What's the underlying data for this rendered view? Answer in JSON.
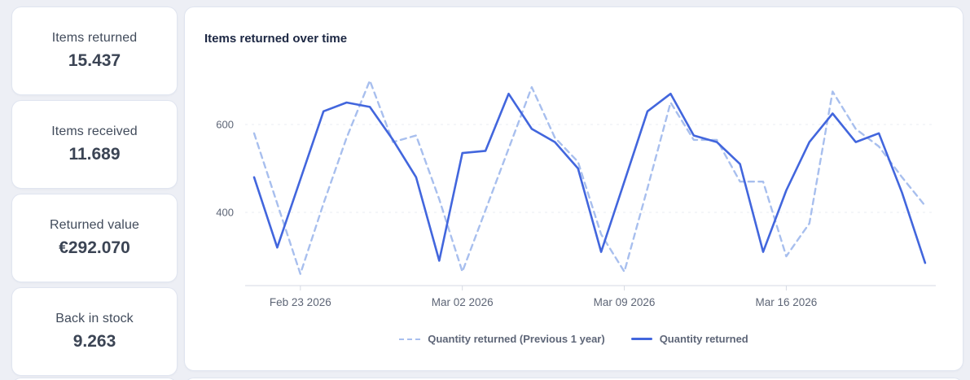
{
  "stats": {
    "cards": [
      {
        "label": "Items returned",
        "value": "15.437"
      },
      {
        "label": "Items received",
        "value": "11.689"
      },
      {
        "label": "Returned value",
        "value": "€292.070"
      },
      {
        "label": "Back in stock",
        "value": "9.263"
      }
    ]
  },
  "chart": {
    "title": "Items returned over time"
  },
  "chart_data": {
    "type": "line",
    "title": "Items returned over time",
    "x": [
      "Feb 21 2026",
      "Feb 22 2026",
      "Feb 23 2026",
      "Feb 24 2026",
      "Feb 25 2026",
      "Feb 26 2026",
      "Feb 27 2026",
      "Feb 28 2026",
      "Mar 01 2026",
      "Mar 02 2026",
      "Mar 03 2026",
      "Mar 04 2026",
      "Mar 05 2026",
      "Mar 06 2026",
      "Mar 07 2026",
      "Mar 08 2026",
      "Mar 09 2026",
      "Mar 10 2026",
      "Mar 11 2026",
      "Mar 12 2026",
      "Mar 13 2026",
      "Mar 14 2026",
      "Mar 15 2026",
      "Mar 16 2026",
      "Mar 17 2026",
      "Mar 18 2026",
      "Mar 19 2026",
      "Mar 20 2026",
      "Mar 21 2026",
      "Mar 22 2026"
    ],
    "xtick_labels": [
      "Feb 23 2026",
      "Mar 02 2026",
      "Mar 09 2026",
      "Mar 16 2026"
    ],
    "xtick_indices": [
      2,
      9,
      16,
      23
    ],
    "yticks": [
      400,
      600
    ],
    "ylim": [
      230,
      755
    ],
    "grid": "horizontal-dashed",
    "legend_position": "bottom-center",
    "series": [
      {
        "name": "Quantity returned (Previous 1 year)",
        "style": "dashed",
        "color": "#a8bfee",
        "values": [
          580,
          420,
          260,
          420,
          570,
          700,
          560,
          575,
          430,
          265,
          405,
          545,
          685,
          570,
          515,
          350,
          265,
          455,
          650,
          565,
          565,
          470,
          470,
          300,
          375,
          675,
          590,
          550,
          480,
          415
        ]
      },
      {
        "name": "Quantity returned",
        "style": "solid",
        "color": "#4266dd",
        "values": [
          480,
          320,
          475,
          630,
          650,
          640,
          565,
          480,
          290,
          535,
          540,
          670,
          590,
          560,
          500,
          310,
          470,
          630,
          670,
          575,
          560,
          510,
          310,
          450,
          560,
          625,
          560,
          580,
          445,
          285
        ]
      }
    ]
  }
}
